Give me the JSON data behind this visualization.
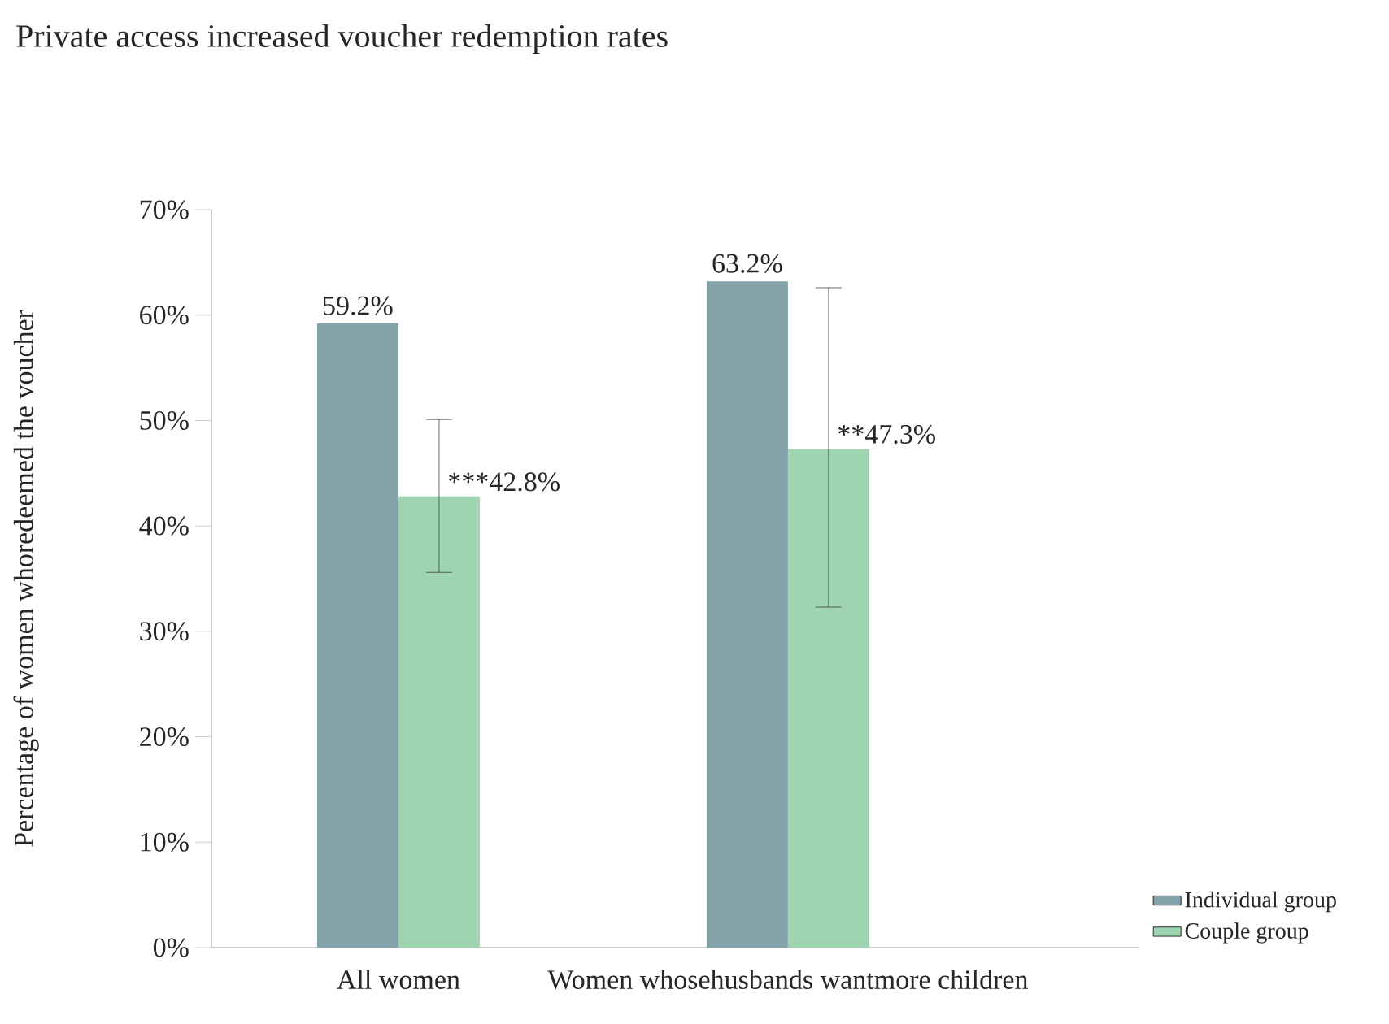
{
  "chart_data": {
    "type": "bar",
    "title": "Private access increased voucher redemption rates",
    "ylabel": "Percentage of women whoredeemed the voucher",
    "categories": [
      "All women",
      "Women whosehusbands wantmore children"
    ],
    "series": [
      {
        "name": "Individual group",
        "color": "#84a2a9",
        "values": [
          59.2,
          63.2
        ],
        "value_labels": [
          "59.2%",
          "63.2%"
        ]
      },
      {
        "name": "Couple group",
        "color": "#9fd4b0",
        "values": [
          42.8,
          47.3
        ],
        "errors": [
          [
            35.6,
            50.1
          ],
          [
            32.3,
            62.6
          ]
        ],
        "value_labels": [
          "***42.8%",
          "**47.3%"
        ]
      }
    ],
    "ylim": [
      0,
      70
    ],
    "yticks": [
      {
        "value": 0,
        "label": "0%"
      },
      {
        "value": 10,
        "label": "10%"
      },
      {
        "value": 20,
        "label": "20%"
      },
      {
        "value": 30,
        "label": "30%"
      },
      {
        "value": 40,
        "label": "40%"
      },
      {
        "value": 50,
        "label": "50%"
      },
      {
        "value": 60,
        "label": "60%"
      },
      {
        "value": 70,
        "label": "70%"
      }
    ],
    "grid": false,
    "legend": "bottom right"
  }
}
